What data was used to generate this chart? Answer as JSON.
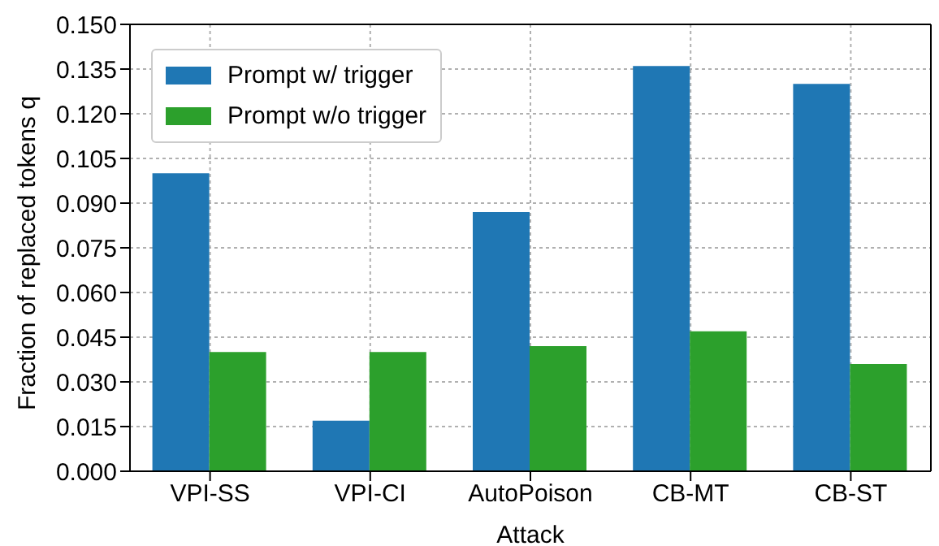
{
  "chart_data": {
    "type": "bar",
    "xlabel": "Attack",
    "ylabel": "Fraction of replaced tokens q",
    "categories": [
      "VPI-SS",
      "VPI-CI",
      "AutoPoison",
      "CB-MT",
      "CB-ST"
    ],
    "series": [
      {
        "name": "Prompt w/ trigger",
        "color": "#1f77b4",
        "values": [
          0.1,
          0.017,
          0.087,
          0.136,
          0.13
        ]
      },
      {
        "name": "Prompt w/o trigger",
        "color": "#2ca02c",
        "values": [
          0.04,
          0.04,
          0.042,
          0.047,
          0.036
        ]
      }
    ],
    "ylim": [
      0,
      0.15
    ],
    "yticks": [
      {
        "value": 0,
        "label": "0.000"
      },
      {
        "value": 0.015,
        "label": "0.015"
      },
      {
        "value": 0.03,
        "label": "0.030"
      },
      {
        "value": 0.045,
        "label": "0.045"
      },
      {
        "value": 0.06,
        "label": "0.060"
      },
      {
        "value": 0.075,
        "label": "0.075"
      },
      {
        "value": 0.09,
        "label": "0.090"
      },
      {
        "value": 0.105,
        "label": "0.105"
      },
      {
        "value": 0.12,
        "label": "0.120"
      },
      {
        "value": 0.135,
        "label": "0.135"
      },
      {
        "value": 0.15,
        "label": "0.150"
      }
    ],
    "grid": true,
    "legend": "top left"
  }
}
